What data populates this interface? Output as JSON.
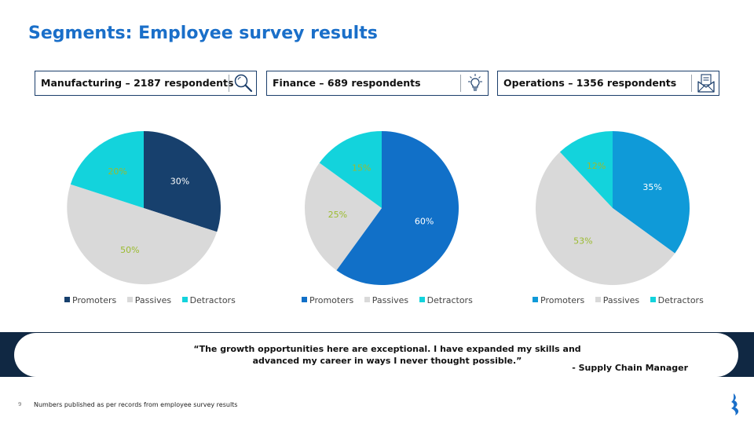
{
  "slide": {
    "title": "Segments: Employee survey results",
    "quote": {
      "line1": "“The growth opportunities here are exceptional. I have expanded my skills and",
      "line2": "advanced my career in ways I never thought possible.”",
      "author": "- Supply Chain Manager"
    },
    "footnote": "Numbers published as per records from employee survey results",
    "page_number": "9"
  },
  "segments": [
    {
      "label": "Manufacturing – 2187 respondents",
      "icon": "magnifier-icon"
    },
    {
      "label": "Finance – 689 respondents",
      "icon": "lightbulb-icon"
    },
    {
      "label": "Operations – 1356 respondents",
      "icon": "envelope-icon"
    }
  ],
  "chart_data": [
    {
      "type": "pie",
      "categories": [
        "Promoters",
        "Passives",
        "Detractors"
      ],
      "values": [
        30,
        50,
        20
      ],
      "value_labels": [
        "30%",
        "50%",
        "20%"
      ],
      "colors": [
        "#17406d",
        "#d9d9d9",
        "#13d3dc"
      ],
      "label_colors": [
        "#ffffff",
        "#9bbb2f",
        "#9bbb2f"
      ],
      "legend": "bottom"
    },
    {
      "type": "pie",
      "categories": [
        "Promoters",
        "Passives",
        "Detractors"
      ],
      "values": [
        60,
        25,
        15
      ],
      "value_labels": [
        "60%",
        "25%",
        "15%"
      ],
      "colors": [
        "#1170c8",
        "#d9d9d9",
        "#13d3dc"
      ],
      "label_colors": [
        "#ffffff",
        "#9bbb2f",
        "#9bbb2f"
      ],
      "legend": "bottom"
    },
    {
      "type": "pie",
      "categories": [
        "Promoters",
        "Passives",
        "Detractors"
      ],
      "values": [
        35,
        53,
        12
      ],
      "value_labels": [
        "35%",
        "53%",
        "12%"
      ],
      "colors": [
        "#0f9ad8",
        "#d9d9d9",
        "#13d3dc"
      ],
      "label_colors": [
        "#ffffff",
        "#9bbb2f",
        "#9bbb2f"
      ],
      "legend": "bottom"
    }
  ]
}
